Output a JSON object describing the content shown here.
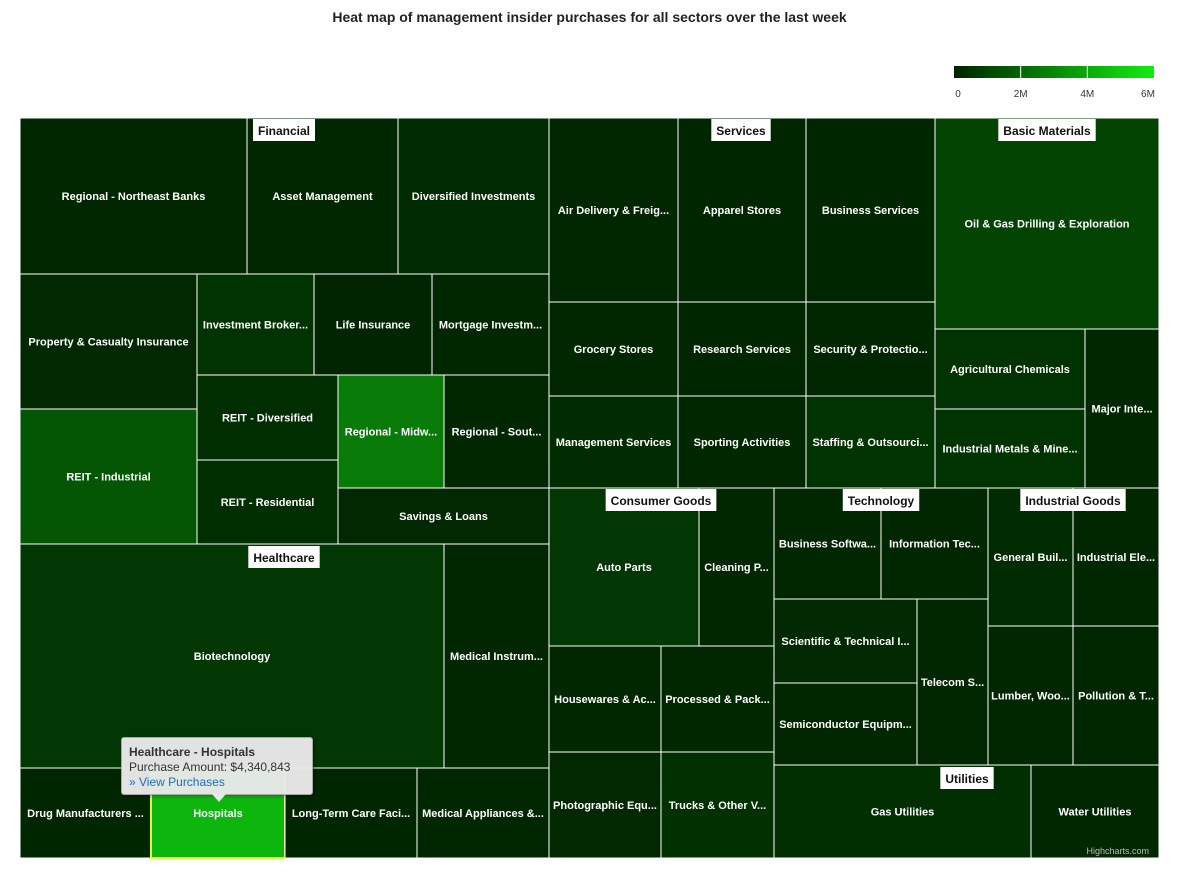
{
  "chart_data": {
    "type": "heatmap",
    "title": "Heat map of management insider purchases for all sectors over the last week",
    "color_axis": {
      "min": 0,
      "max": 6000000,
      "ticks": [
        "0",
        "2M",
        "4M",
        "6M"
      ],
      "min_color": "#002200",
      "max_color": "#11ee11",
      "legend_placement": "top-right"
    },
    "sectors": [
      {
        "name": "Financial",
        "industries": [
          {
            "name": "Regional - Northeast Banks",
            "value": 150000
          },
          {
            "name": "Asset Management",
            "value": 150000
          },
          {
            "name": "Diversified Investments",
            "value": 250000
          },
          {
            "name": "Property & Casualty Insurance",
            "value": 180000
          },
          {
            "name": "Investment Broker...",
            "value": 500000
          },
          {
            "name": "Life Insurance",
            "value": 100000
          },
          {
            "name": "Mortgage Investm...",
            "value": 150000
          },
          {
            "name": "REIT - Industrial",
            "value": 1500000
          },
          {
            "name": "REIT - Diversified",
            "value": 350000
          },
          {
            "name": "Regional - Midw...",
            "value": 2600000
          },
          {
            "name": "Regional - Sout...",
            "value": 150000
          },
          {
            "name": "REIT - Residential",
            "value": 350000
          },
          {
            "name": "Savings & Loans",
            "value": 180000
          }
        ]
      },
      {
        "name": "Healthcare",
        "industries": [
          {
            "name": "Biotechnology",
            "value": 600000
          },
          {
            "name": "Medical Instrum...",
            "value": 150000
          },
          {
            "name": "Drug Manufacturers ...",
            "value": 120000
          },
          {
            "name": "Hospitals",
            "value": 4340843
          },
          {
            "name": "Long-Term Care Faci...",
            "value": 120000
          },
          {
            "name": "Medical Appliances &...",
            "value": 150000
          }
        ]
      },
      {
        "name": "Services",
        "industries": [
          {
            "name": "Air Delivery & Freig...",
            "value": 150000
          },
          {
            "name": "Apparel Stores",
            "value": 120000
          },
          {
            "name": "Business Services",
            "value": 120000
          },
          {
            "name": "Grocery Stores",
            "value": 150000
          },
          {
            "name": "Research Services",
            "value": 120000
          },
          {
            "name": "Security & Protectio...",
            "value": 150000
          },
          {
            "name": "Management Services",
            "value": 300000
          },
          {
            "name": "Sporting Activities",
            "value": 150000
          },
          {
            "name": "Staffing & Outsourci...",
            "value": 500000
          }
        ]
      },
      {
        "name": "Basic Materials",
        "industries": [
          {
            "name": "Oil & Gas Drilling & Exploration",
            "value": 1000000
          },
          {
            "name": "Agricultural Chemicals",
            "value": 500000
          },
          {
            "name": "Major Inte...",
            "value": 150000
          },
          {
            "name": "Industrial Metals & Mine...",
            "value": 500000
          }
        ]
      },
      {
        "name": "Consumer Goods",
        "industries": [
          {
            "name": "Auto Parts",
            "value": 600000
          },
          {
            "name": "Cleaning P...",
            "value": 150000
          },
          {
            "name": "Housewares & Ac...",
            "value": 150000
          },
          {
            "name": "Processed & Pack...",
            "value": 150000
          },
          {
            "name": "Photographic Equ...",
            "value": 180000
          },
          {
            "name": "Trucks & Other V...",
            "value": 400000
          }
        ]
      },
      {
        "name": "Technology",
        "industries": [
          {
            "name": "Business Softwa...",
            "value": 150000
          },
          {
            "name": "Information Tec...",
            "value": 150000
          },
          {
            "name": "Scientific & Technical I...",
            "value": 200000
          },
          {
            "name": "Telecom S...",
            "value": 150000
          },
          {
            "name": "Semiconductor Equipm...",
            "value": 150000
          }
        ]
      },
      {
        "name": "Industrial Goods",
        "industries": [
          {
            "name": "General Buil...",
            "value": 300000
          },
          {
            "name": "Industrial Ele...",
            "value": 150000
          },
          {
            "name": "Lumber, Woo...",
            "value": 150000
          },
          {
            "name": "Pollution & T...",
            "value": 150000
          }
        ]
      },
      {
        "name": "Utilities",
        "industries": [
          {
            "name": "Gas Utilities",
            "value": 350000
          },
          {
            "name": "Water Utilities",
            "value": 150000
          }
        ]
      }
    ],
    "tooltip": {
      "title": "Healthcare - Hospitals",
      "line": "Purchase Amount: $4,340,843",
      "link": "» View Purchases"
    },
    "credits": "Highcharts.com"
  }
}
